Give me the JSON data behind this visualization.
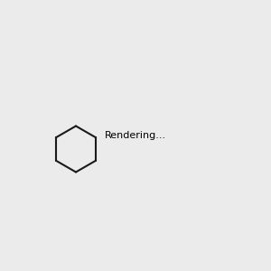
{
  "background_color": "#ebebeb",
  "figsize": [
    3.0,
    3.0
  ],
  "dpi": 100,
  "bond_color": "#1a1a1a",
  "bond_width": 1.5,
  "atom_colors": {
    "N": "#0000ff",
    "O": "#ff0000",
    "C": "#1a1a1a"
  },
  "font_size_atom": 7.5,
  "font_size_small": 6.5
}
